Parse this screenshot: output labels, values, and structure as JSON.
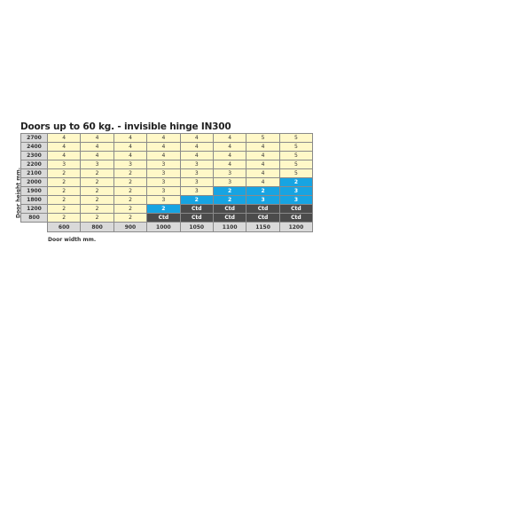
{
  "title": "Doors up to 60 kg. - invisible hinge IN300",
  "y_label": "Door height mm.",
  "x_label": "Door width mm.",
  "colors": {
    "standard": "#fff8c8",
    "blue": "#17a4e2",
    "ctd": "#4b4b4b",
    "header": "#d9d9d9"
  },
  "widths": [
    "600",
    "800",
    "900",
    "1000",
    "1050",
    "1100",
    "1150",
    "1200"
  ],
  "rows": [
    {
      "height": "2700",
      "cells": [
        [
          "4",
          "y"
        ],
        [
          "4",
          "y"
        ],
        [
          "4",
          "y"
        ],
        [
          "4",
          "y"
        ],
        [
          "4",
          "y"
        ],
        [
          "4",
          "y"
        ],
        [
          "5",
          "y"
        ],
        [
          "5",
          "y"
        ]
      ]
    },
    {
      "height": "2400",
      "cells": [
        [
          "4",
          "y"
        ],
        [
          "4",
          "y"
        ],
        [
          "4",
          "y"
        ],
        [
          "4",
          "y"
        ],
        [
          "4",
          "y"
        ],
        [
          "4",
          "y"
        ],
        [
          "4",
          "y"
        ],
        [
          "5",
          "y"
        ]
      ]
    },
    {
      "height": "2300",
      "cells": [
        [
          "4",
          "y"
        ],
        [
          "4",
          "y"
        ],
        [
          "4",
          "y"
        ],
        [
          "4",
          "y"
        ],
        [
          "4",
          "y"
        ],
        [
          "4",
          "y"
        ],
        [
          "4",
          "y"
        ],
        [
          "5",
          "y"
        ]
      ]
    },
    {
      "height": "2200",
      "cells": [
        [
          "3",
          "y"
        ],
        [
          "3",
          "y"
        ],
        [
          "3",
          "y"
        ],
        [
          "3",
          "y"
        ],
        [
          "3",
          "y"
        ],
        [
          "4",
          "y"
        ],
        [
          "4",
          "y"
        ],
        [
          "5",
          "y"
        ]
      ]
    },
    {
      "height": "2100",
      "cells": [
        [
          "2",
          "y"
        ],
        [
          "2",
          "y"
        ],
        [
          "2",
          "y"
        ],
        [
          "3",
          "y"
        ],
        [
          "3",
          "y"
        ],
        [
          "3",
          "y"
        ],
        [
          "4",
          "y"
        ],
        [
          "5",
          "y"
        ]
      ]
    },
    {
      "height": "2000",
      "cells": [
        [
          "2",
          "y"
        ],
        [
          "2",
          "y"
        ],
        [
          "2",
          "y"
        ],
        [
          "3",
          "y"
        ],
        [
          "3",
          "y"
        ],
        [
          "3",
          "y"
        ],
        [
          "4",
          "y"
        ],
        [
          "2",
          "b"
        ]
      ]
    },
    {
      "height": "1900",
      "cells": [
        [
          "2",
          "y"
        ],
        [
          "2",
          "y"
        ],
        [
          "2",
          "y"
        ],
        [
          "3",
          "y"
        ],
        [
          "3",
          "y"
        ],
        [
          "2",
          "b"
        ],
        [
          "2",
          "b"
        ],
        [
          "3",
          "b"
        ]
      ]
    },
    {
      "height": "1800",
      "cells": [
        [
          "2",
          "y"
        ],
        [
          "2",
          "y"
        ],
        [
          "2",
          "y"
        ],
        [
          "3",
          "y"
        ],
        [
          "2",
          "b"
        ],
        [
          "2",
          "b"
        ],
        [
          "3",
          "b"
        ],
        [
          "3",
          "b"
        ]
      ]
    },
    {
      "height": "1200",
      "cells": [
        [
          "2",
          "y"
        ],
        [
          "2",
          "y"
        ],
        [
          "2",
          "y"
        ],
        [
          "2",
          "b"
        ],
        [
          "Ctd",
          "c"
        ],
        [
          "Ctd",
          "c"
        ],
        [
          "Ctd",
          "c"
        ],
        [
          "Ctd",
          "c"
        ]
      ]
    },
    {
      "height": "800",
      "cells": [
        [
          "2",
          "y"
        ],
        [
          "2",
          "y"
        ],
        [
          "2",
          "y"
        ],
        [
          "Ctd",
          "c"
        ],
        [
          "Ctd",
          "c"
        ],
        [
          "Ctd",
          "c"
        ],
        [
          "Ctd",
          "c"
        ],
        [
          "Ctd",
          "c"
        ]
      ]
    }
  ]
}
